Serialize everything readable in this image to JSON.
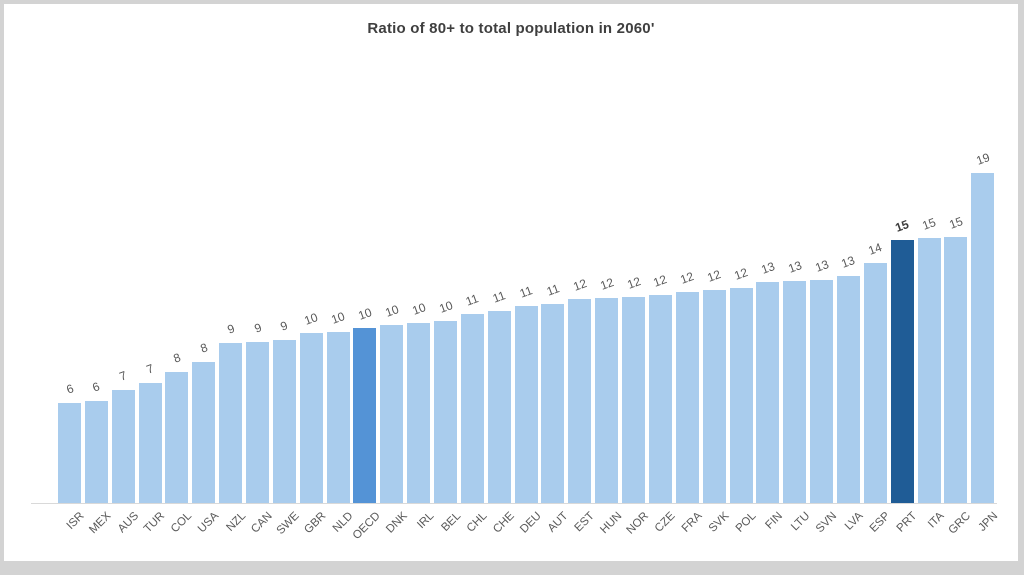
{
  "window": {
    "frame_color": "#d3d3d3",
    "canvas_color": "#ffffff"
  },
  "chart_data": {
    "type": "bar",
    "title": "Ratio of 80+ to total population in 2060'",
    "categories": [
      "ISR",
      "MEX",
      "AUS",
      "TUR",
      "COL",
      "USA",
      "NZL",
      "CAN",
      "SWE",
      "GBR",
      "NLD",
      "OECD",
      "DNK",
      "IRL",
      "BEL",
      "CHL",
      "CHE",
      "DEU",
      "AUT",
      "EST",
      "HUN",
      "NOR",
      "CZE",
      "FRA",
      "SVK",
      "POL",
      "FIN",
      "LTU",
      "SVN",
      "LVA",
      "ESP",
      "PRT",
      "ITA",
      "GRC",
      "JPN"
    ],
    "values": [
      6,
      6,
      7,
      7,
      8,
      8,
      9,
      9,
      9,
      10,
      10,
      10,
      10,
      10,
      10,
      11,
      11,
      11,
      11,
      12,
      12,
      12,
      12,
      12,
      12,
      12,
      13,
      13,
      13,
      13,
      14,
      15,
      15,
      15,
      19
    ],
    "bar_heights_units": [
      5.8,
      5.9,
      6.55,
      6.95,
      7.6,
      8.15,
      9.25,
      9.3,
      9.4,
      9.8,
      9.9,
      10.1,
      10.3,
      10.4,
      10.5,
      10.95,
      11.1,
      11.4,
      11.5,
      11.8,
      11.85,
      11.9,
      12.0,
      12.2,
      12.3,
      12.4,
      12.8,
      12.85,
      12.9,
      13.15,
      13.85,
      15.2,
      15.3,
      15.4,
      19.1
    ],
    "bar_color": "#a9cced",
    "highlight_bars": {
      "OECD": "#5493d6",
      "PRT": "#1f5c96"
    },
    "bold_value_labels": [
      "PRT"
    ],
    "value_label_color": "#595959",
    "bold_value_label_color": "#3d3d3d",
    "tick_label_color": "#595959",
    "title_color": "#3f3f3f",
    "axis_line_color": "#d9d9d9",
    "ylim": [
      0,
      20
    ],
    "grid": false,
    "legend": false
  }
}
